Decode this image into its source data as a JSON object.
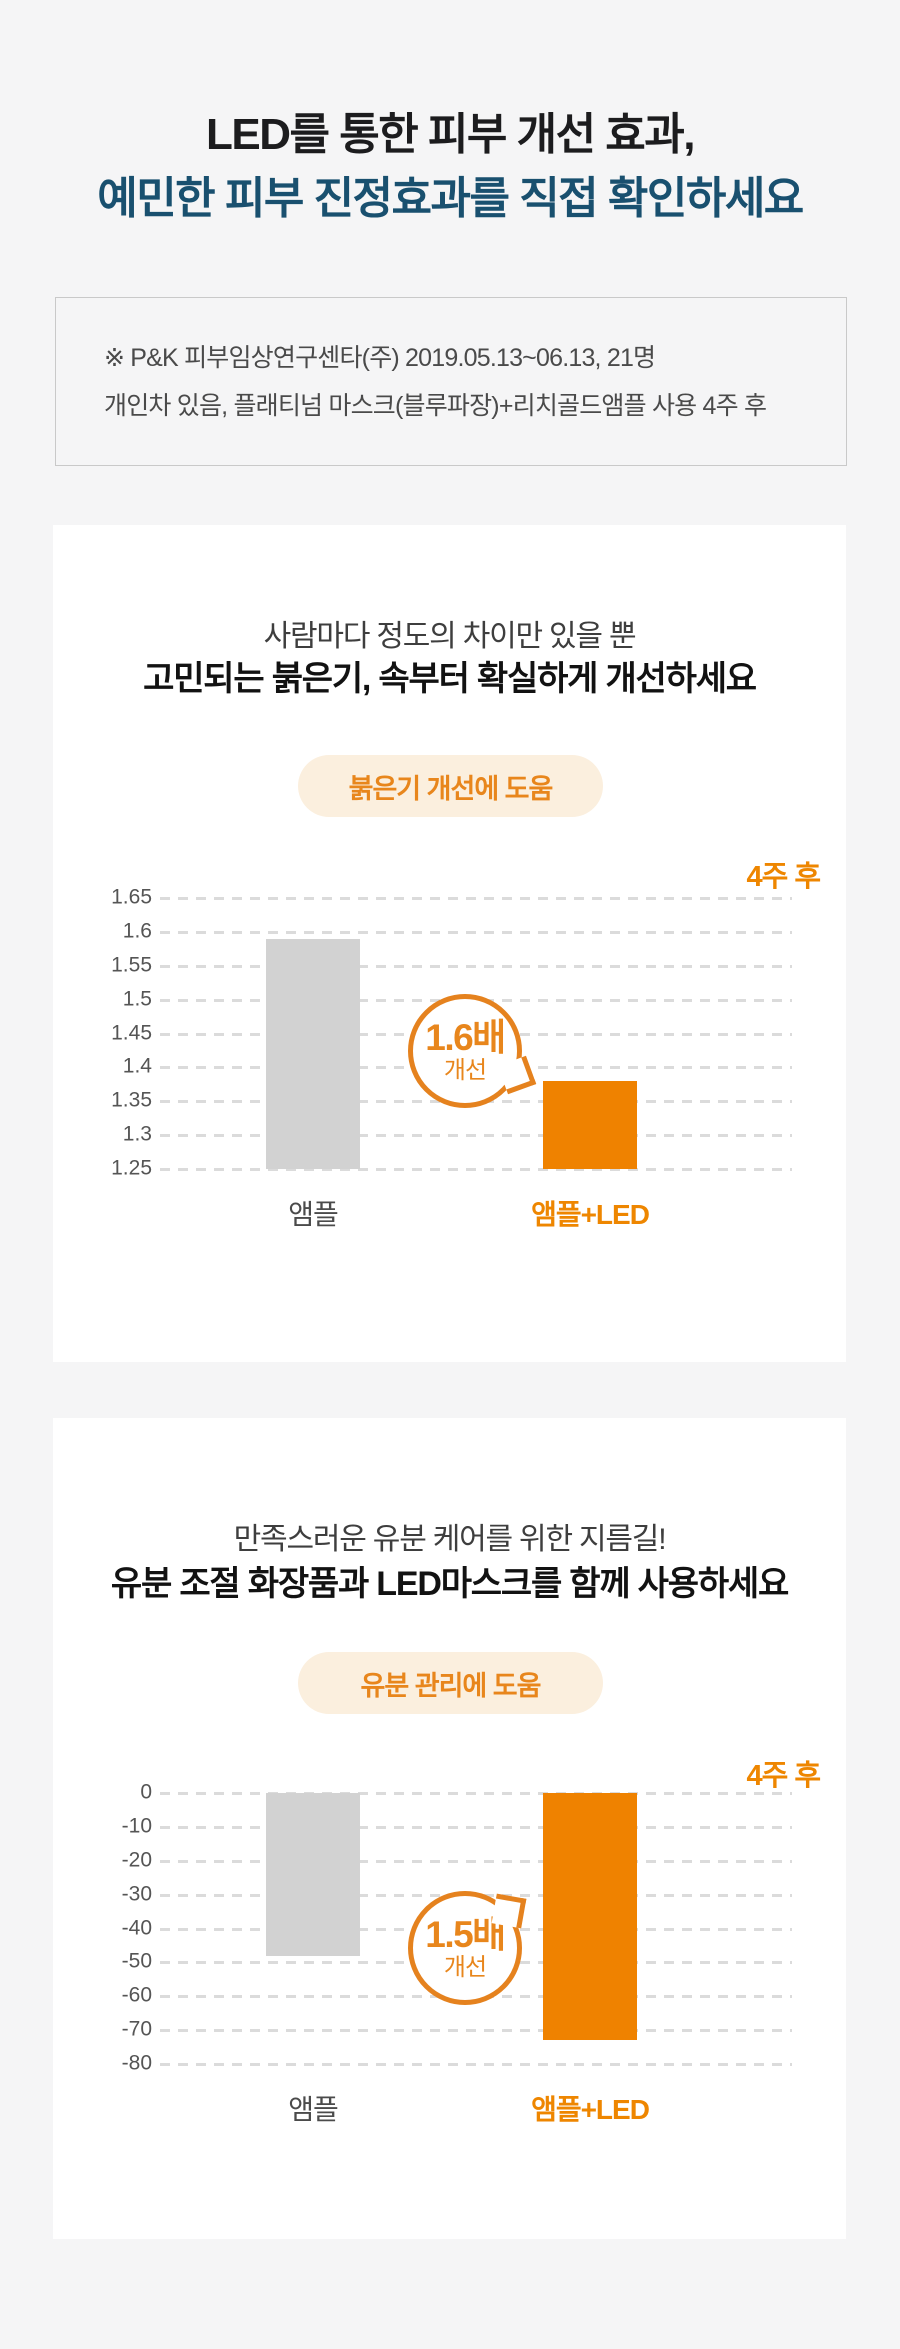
{
  "colors": {
    "page_bg": "#F5F5F6",
    "card_bg": "#FFFFFF",
    "title_black": "#1C1C1E",
    "title_blue": "#19506F",
    "accent_orange": "#EE8600",
    "badge_text_orange": "#E8861C",
    "badge_bg": "#FBEFDE",
    "bar_gray": "#D2D2D2",
    "bar_orange": "#EF8200",
    "bubble_stroke": "#E5821E"
  },
  "header": {
    "title_line1": "LED를 통한 피부 개선 효과,",
    "title_line2": "예민한 피부 진정효과를 직접 확인하세요"
  },
  "disclaimer": {
    "line1": "※ P&K 피부임상연구센타(주) 2019.05.13~06.13, 21명",
    "line2": "개인차 있음, 플래티넘 마스크(블루파장)+리치골드앰플 사용 4주 후"
  },
  "sections": [
    {
      "subtitle": "사람마다 정도의 차이만 있을 뿐",
      "title": "고민되는 붉은기, 속부터 확실하게 개선하세요"
    },
    {
      "subtitle": "만족스러운 유분 케어를 위한 지름길!",
      "title": "유분 조절 화장품과 LED마스크를 함께 사용하세요"
    }
  ],
  "chart_data": [
    {
      "type": "bar",
      "title_badge": "붉은기 개선에 도움",
      "period_label": "4주 후",
      "categories": [
        "앰플",
        "앰플+LED"
      ],
      "values": [
        1.59,
        1.38
      ],
      "bar_colors": [
        "#D2D2D2",
        "#EF8200"
      ],
      "label_colors": [
        "#4B4B4B",
        "#EE8600"
      ],
      "ylim": [
        1.25,
        1.65
      ],
      "ytick_step": 0.05,
      "ytick_labels": [
        "1.65",
        "1.6",
        "1.55",
        "1.5",
        "1.45",
        "1.4",
        "1.35",
        "1.3",
        "1.25"
      ],
      "grid": "dashed-horizontal",
      "baseline": "min",
      "annotation": {
        "line1": "1.6배",
        "line2": "개선",
        "points_to": "앰플+LED"
      }
    },
    {
      "type": "bar",
      "title_badge": "유분 관리에 도움",
      "period_label": "4주 후",
      "categories": [
        "앰플",
        "앰플+LED"
      ],
      "values": [
        -48,
        -73
      ],
      "bar_colors": [
        "#D2D2D2",
        "#EF8200"
      ],
      "label_colors": [
        "#4B4B4B",
        "#EE8600"
      ],
      "ylim": [
        -80,
        0
      ],
      "ytick_step": 10,
      "ytick_labels": [
        "0",
        "-10",
        "-20",
        "-30",
        "-40",
        "-50",
        "-60",
        "-70",
        "-80"
      ],
      "grid": "dashed-horizontal",
      "baseline": "max",
      "annotation": {
        "line1": "1.5배",
        "line2": "개선",
        "points_to": "앰플+LED"
      }
    }
  ]
}
